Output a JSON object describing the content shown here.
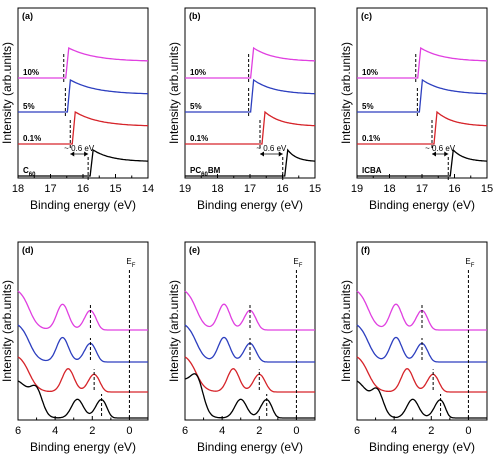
{
  "colors": {
    "magenta": "#e040e0",
    "blue": "#2d3fbf",
    "red": "#d6242a",
    "black": "#000000"
  },
  "chart_data": [
    {
      "id": "a",
      "panel_label": "(a)",
      "type": "line",
      "xlabel": "Binding energy (eV)",
      "ylabel": "Intensity (arb.units)",
      "xlim": [
        18,
        14
      ],
      "xticks": [
        18,
        17,
        16,
        15,
        14
      ],
      "edge_label": "C60",
      "edge_label_main": "C",
      "edge_label_sub": "60",
      "shift_annotation": "~ 0.6 eV",
      "series": [
        {
          "name": "10%",
          "color": "#e040e0",
          "edge": 16.5
        },
        {
          "name": "5%",
          "color": "#2d3fbf",
          "edge": 16.45
        },
        {
          "name": "0.1%",
          "color": "#d6242a",
          "edge": 16.3
        },
        {
          "name": "C60",
          "color": "#000000",
          "edge": 15.75
        }
      ]
    },
    {
      "id": "b",
      "panel_label": "(b)",
      "type": "line",
      "xlabel": "Binding energy (eV)",
      "ylabel": "Intensity (arb.units)",
      "xlim": [
        19,
        15
      ],
      "xticks": [
        19,
        18,
        17,
        16,
        15
      ],
      "edge_label": "PC60BM",
      "edge_label_main": "PC",
      "edge_label_sub": "60",
      "edge_label_tail": "BM",
      "shift_annotation": "~ 0.6 eV",
      "series": [
        {
          "name": "10%",
          "color": "#e040e0",
          "edge": 16.95
        },
        {
          "name": "5%",
          "color": "#2d3fbf",
          "edge": 16.95
        },
        {
          "name": "0.1%",
          "color": "#d6242a",
          "edge": 16.6
        },
        {
          "name": "PC60BM",
          "color": "#000000",
          "edge": 15.9
        }
      ]
    },
    {
      "id": "c",
      "panel_label": "(c)",
      "type": "line",
      "xlabel": "Binding energy (eV)",
      "ylabel": "Intensity (arb.units)",
      "xlim": [
        19,
        15
      ],
      "xticks": [
        19,
        18,
        17,
        16,
        15
      ],
      "edge_label": "ICBA",
      "shift_annotation": "~ 0.6 eV",
      "series": [
        {
          "name": "10%",
          "color": "#e040e0",
          "edge": 17.1
        },
        {
          "name": "5%",
          "color": "#2d3fbf",
          "edge": 17.05
        },
        {
          "name": "0.1%",
          "color": "#d6242a",
          "edge": 16.6
        },
        {
          "name": "ICBA",
          "color": "#000000",
          "edge": 16.1
        }
      ]
    },
    {
      "id": "d",
      "panel_label": "(d)",
      "type": "line",
      "xlabel": "Binding energy (eV)",
      "ylabel": "Intensity (arb.units)",
      "xlim": [
        6,
        -1
      ],
      "xticks": [
        6,
        4,
        2,
        0
      ],
      "fermi_label": "E",
      "fermi_sub": "F",
      "fermi_level": 0,
      "series": [
        {
          "color": "#e040e0",
          "peaks": [
            3.6,
            2.1
          ],
          "onset": 1.5
        },
        {
          "color": "#2d3fbf",
          "peaks": [
            3.6,
            2.1
          ],
          "onset": 1.5
        },
        {
          "color": "#d6242a",
          "peaks": [
            3.3,
            1.9
          ],
          "onset": 1.3
        },
        {
          "color": "#000000",
          "peaks": [
            5.0,
            2.8,
            1.5
          ],
          "onset": 1.0
        }
      ]
    },
    {
      "id": "e",
      "panel_label": "(e)",
      "type": "line",
      "xlabel": "Binding energy (eV)",
      "ylabel": "Intensity (arb.units)",
      "xlim": [
        6,
        -1
      ],
      "xticks": [
        6,
        4,
        2,
        0
      ],
      "fermi_label": "E",
      "fermi_sub": "F",
      "fermi_level": 0,
      "series": [
        {
          "color": "#e040e0",
          "peaks": [
            3.9,
            2.5
          ],
          "onset": 1.8
        },
        {
          "color": "#2d3fbf",
          "peaks": [
            3.9,
            2.5
          ],
          "onset": 1.8
        },
        {
          "color": "#d6242a",
          "peaks": [
            3.4,
            2.0
          ],
          "onset": 1.3
        },
        {
          "color": "#000000",
          "peaks": [
            5.3,
            3.0,
            1.6
          ],
          "onset": 1.1
        }
      ]
    },
    {
      "id": "f",
      "panel_label": "(f)",
      "type": "line",
      "xlabel": "Binding energy (eV)",
      "ylabel": "Intensity (arb.units)",
      "xlim": [
        6,
        -1
      ],
      "xticks": [
        6,
        4,
        2,
        0
      ],
      "fermi_label": "E",
      "fermi_sub": "F",
      "fermi_level": 0,
      "series": [
        {
          "color": "#e040e0",
          "peaks": [
            3.9,
            2.5
          ],
          "onset": 1.9
        },
        {
          "color": "#2d3fbf",
          "peaks": [
            3.9,
            2.5
          ],
          "onset": 1.9
        },
        {
          "color": "#d6242a",
          "peaks": [
            3.3,
            1.9
          ],
          "onset": 1.3
        },
        {
          "color": "#000000",
          "peaks": [
            4.9,
            3.0,
            1.5
          ],
          "onset": 1.1
        }
      ]
    }
  ]
}
